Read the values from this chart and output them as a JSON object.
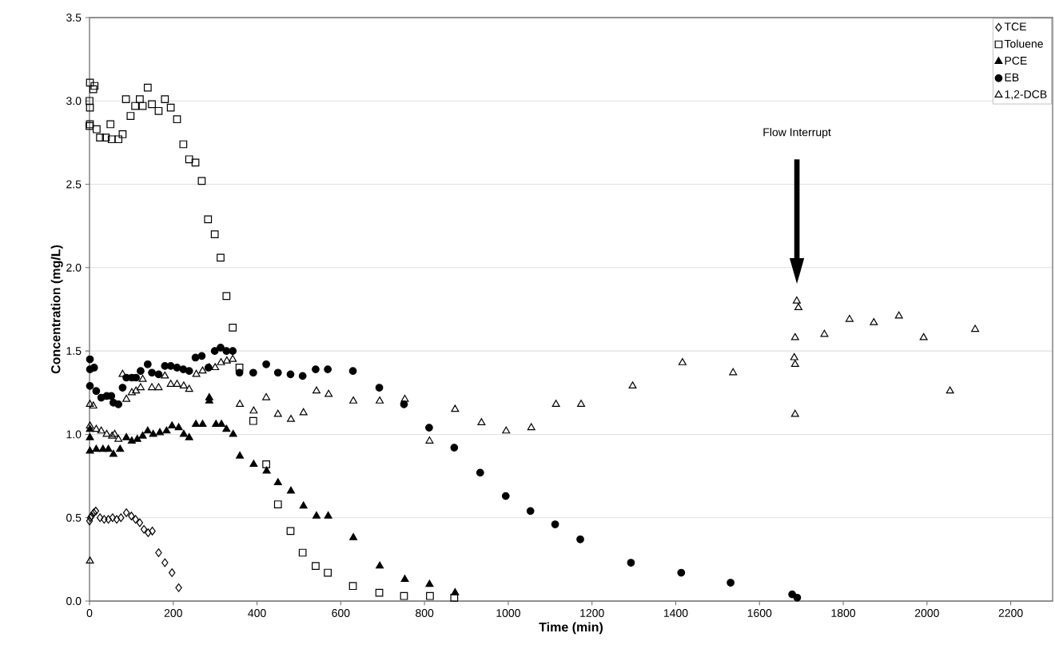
{
  "chart_data": {
    "type": "scatter",
    "xlabel": "Time (min)",
    "ylabel": "Concentration (mg/L)",
    "xlim": [
      0,
      2300
    ],
    "xticks": [
      0,
      200,
      400,
      600,
      800,
      1000,
      1200,
      1400,
      1600,
      1800,
      2000,
      2200
    ],
    "ylim": [
      0,
      3.5
    ],
    "yticks": [
      {
        "value": 0,
        "label": "0.0"
      },
      {
        "value": 0.5,
        "label": "0.5"
      },
      {
        "value": 1,
        "label": "1.0"
      },
      {
        "value": 1.5,
        "label": "1.5"
      },
      {
        "value": 2,
        "label": "2.0"
      },
      {
        "value": 2.5,
        "label": "2.5"
      },
      {
        "value": 3,
        "label": "3.0"
      },
      {
        "value": 3.5,
        "label": "3.5"
      }
    ],
    "grid": "y",
    "legend": "top right",
    "annotations": [
      "Flow  Interrupt"
    ],
    "series": [
      {
        "name": "TCE",
        "color": "#000000",
        "marker": "diamond",
        "x": [
          0,
          2,
          5,
          10,
          15,
          25,
          35,
          45,
          55,
          65,
          75,
          88,
          100,
          110,
          120,
          130,
          140,
          150,
          165,
          180,
          197,
          213
        ],
        "values": [
          0.48,
          0.5,
          0.51,
          0.53,
          0.54,
          0.5,
          0.49,
          0.49,
          0.5,
          0.49,
          0.5,
          0.53,
          0.51,
          0.49,
          0.47,
          0.43,
          0.41,
          0.42,
          0.29,
          0.23,
          0.17,
          0.08
        ]
      },
      {
        "name": "Toluene",
        "color": "#000000",
        "marker": "square",
        "x": [
          1,
          12,
          9,
          0,
          1,
          1,
          0,
          17,
          25,
          39,
          53,
          69,
          79,
          50,
          87,
          98,
          109,
          120,
          127,
          139,
          149,
          165,
          180,
          194,
          209,
          224,
          238,
          253,
          268,
          283,
          299,
          313,
          327,
          342,
          358,
          391,
          422,
          450,
          480,
          509,
          540,
          569,
          629,
          692,
          751,
          813,
          871
        ],
        "values": [
          3.11,
          3.09,
          3.07,
          3.0,
          2.96,
          2.86,
          2.85,
          2.83,
          2.78,
          2.78,
          2.77,
          2.77,
          2.8,
          2.86,
          3.01,
          2.91,
          2.97,
          3.01,
          2.97,
          3.08,
          2.98,
          2.94,
          3.01,
          2.96,
          2.89,
          2.74,
          2.65,
          2.63,
          2.52,
          2.29,
          2.2,
          2.06,
          1.83,
          1.64,
          1.4,
          1.08,
          0.82,
          0.58,
          0.42,
          0.29,
          0.21,
          0.17,
          0.09,
          0.05,
          0.03,
          0.03,
          0.02
        ]
      },
      {
        "name": "PCE",
        "color": "#000000",
        "marker": "triangle",
        "x": [
          1,
          1,
          1,
          16,
          32,
          45,
          57,
          73,
          88,
          101,
          114,
          127,
          139,
          152,
          168,
          184,
          197,
          213,
          225,
          238,
          254,
          270,
          286,
          286,
          302,
          315,
          327,
          343,
          359,
          392,
          423,
          450,
          481,
          511,
          542,
          570,
          630,
          693,
          753,
          812,
          873
        ],
        "values": [
          0.9,
          0.98,
          1.03,
          0.91,
          0.91,
          0.91,
          0.88,
          0.91,
          0.98,
          0.96,
          0.97,
          0.99,
          1.02,
          1.0,
          1.01,
          1.02,
          1.05,
          1.04,
          1.0,
          0.98,
          1.06,
          1.06,
          1.22,
          1.2,
          1.06,
          1.06,
          1.03,
          1.0,
          0.87,
          0.82,
          0.78,
          0.71,
          0.66,
          0.57,
          0.51,
          0.51,
          0.38,
          0.21,
          0.13,
          0.1,
          0.05
        ]
      },
      {
        "name": "EB",
        "color": "#000000",
        "marker": "circle",
        "x": [
          1,
          1,
          11,
          1,
          16,
          28,
          41,
          52,
          57,
          69,
          79,
          88,
          101,
          111,
          122,
          139,
          149,
          165,
          180,
          194,
          209,
          224,
          238,
          253,
          268,
          284,
          299,
          313,
          327,
          342,
          358,
          391,
          422,
          450,
          480,
          509,
          540,
          569,
          629,
          692,
          751,
          811,
          871,
          933,
          994,
          1053,
          1112,
          1172,
          1293,
          1413,
          1531,
          1678,
          1690
        ],
        "values": [
          1.45,
          1.39,
          1.4,
          1.29,
          1.26,
          1.22,
          1.23,
          1.23,
          1.19,
          1.18,
          1.28,
          1.34,
          1.34,
          1.34,
          1.38,
          1.42,
          1.37,
          1.36,
          1.41,
          1.41,
          1.4,
          1.39,
          1.38,
          1.46,
          1.47,
          1.4,
          1.5,
          1.52,
          1.5,
          1.5,
          1.37,
          1.37,
          1.42,
          1.37,
          1.36,
          1.35,
          1.39,
          1.39,
          1.38,
          1.28,
          1.18,
          1.04,
          0.92,
          0.77,
          0.63,
          0.54,
          0.46,
          0.37,
          0.23,
          0.17,
          0.11,
          0.04,
          0.02
        ]
      },
      {
        "name": "1,2-DCB",
        "color": "#000000",
        "marker": "triangle",
        "x": [
          1,
          1,
          1,
          9,
          16,
          28,
          41,
          54,
          60,
          69,
          79,
          88,
          101,
          111,
          122,
          127,
          149,
          165,
          180,
          194,
          209,
          225,
          238,
          255,
          270,
          286,
          300,
          314,
          328,
          342,
          359,
          392,
          422,
          450,
          481,
          511,
          542,
          571,
          630,
          693,
          753,
          812,
          873,
          936,
          995,
          1055,
          1114,
          1174,
          1297,
          1416,
          1537,
          1685,
          1683,
          1685,
          1685,
          1689,
          1693,
          1755,
          1815,
          1873,
          1933,
          1992,
          2055,
          2115
        ],
        "values": [
          0.24,
          1.05,
          1.18,
          1.17,
          1.03,
          1.02,
          1.0,
          0.99,
          1.0,
          0.97,
          1.36,
          1.21,
          1.25,
          1.26,
          1.28,
          1.33,
          1.28,
          1.28,
          1.35,
          1.3,
          1.3,
          1.29,
          1.27,
          1.36,
          1.38,
          1.4,
          1.4,
          1.43,
          1.44,
          1.45,
          1.18,
          1.14,
          1.22,
          1.12,
          1.09,
          1.13,
          1.26,
          1.24,
          1.2,
          1.2,
          1.21,
          0.96,
          1.15,
          1.07,
          1.02,
          1.04,
          1.18,
          1.18,
          1.29,
          1.43,
          1.37,
          1.12,
          1.46,
          1.42,
          1.58,
          1.8,
          1.76,
          1.6,
          1.69,
          1.67,
          1.71,
          1.58,
          1.26,
          1.63
        ]
      }
    ]
  }
}
